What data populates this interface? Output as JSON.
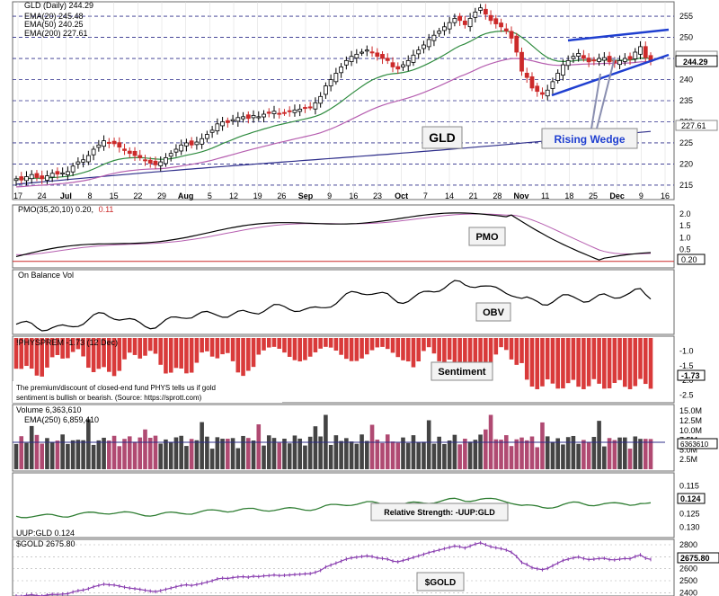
{
  "chart_data": {
    "type": "financial-multi-panel",
    "symbol_header": "GLD (Daily) 244.29",
    "price_panel": {
      "legend": [
        {
          "label": "GLD (Daily) 244.29",
          "color": "#000000"
        },
        {
          "label": "EMA(20) 245.48",
          "color": "#2e8b3e"
        },
        {
          "label": "EMA(50) 240.25",
          "color": "#b65fb0"
        },
        {
          "label": "EMA(200) 227.61",
          "color": "#2d2d8a"
        }
      ],
      "y_ticks": [
        "255",
        "250",
        "245",
        "240",
        "235",
        "230",
        "225",
        "220",
        "215"
      ],
      "y_range": [
        212,
        258
      ],
      "last_price": "244.29",
      "ema200_last": "227.61",
      "annotations": {
        "gld": "GLD",
        "wedge": "Rising Wedge"
      },
      "closes": [
        216.5,
        216.2,
        217,
        217.5,
        216.8,
        216.5,
        217.2,
        217.8,
        217.6,
        217.9,
        218.2,
        219.5,
        220.5,
        221,
        222,
        223.5,
        224.5,
        225.5,
        225,
        224.8,
        224,
        223.2,
        222.5,
        222,
        221.5,
        220.8,
        220.2,
        219.8,
        220.5,
        221.5,
        222.5,
        223.5,
        224.5,
        225,
        224.5,
        225.2,
        226,
        227,
        228,
        229.5,
        230,
        229.8,
        230.5,
        231,
        231.2,
        230.8,
        231.5,
        231.2,
        231.8,
        232,
        232.5,
        232,
        232.2,
        232.5,
        232.8,
        233,
        233.3,
        233.5,
        234.5,
        236,
        238.5,
        240,
        241.5,
        243,
        244.5,
        245.5,
        246,
        246.5,
        247,
        246.5,
        245.5,
        245,
        244.5,
        243,
        242.5,
        243.5,
        244.5,
        245.8,
        247,
        248.2,
        249.5,
        250.5,
        251.5,
        252.5,
        253.5,
        254.5,
        254,
        253,
        254.5,
        256,
        257,
        255.5,
        254,
        253.2,
        252.5,
        251.5,
        249.8,
        246.5,
        242,
        240.5,
        238,
        237.2,
        236.5,
        237.5,
        239.5,
        241.5,
        243.5,
        244.5,
        245.5,
        246.2,
        245,
        244.2,
        244.5,
        245,
        245.2,
        244.2,
        244,
        244.5,
        245,
        244.8,
        246.5,
        247.8,
        245.2,
        244.29
      ]
    },
    "x_axis": {
      "labels": [
        "17",
        "24",
        "Jul",
        "8",
        "15",
        "22",
        "29",
        "Aug",
        "5",
        "12",
        "19",
        "26",
        "Sep",
        "9",
        "16",
        "23",
        "Oct",
        "7",
        "14",
        "21",
        "28",
        "Nov",
        "11",
        "18",
        "25",
        "Dec",
        "9",
        "16"
      ]
    },
    "pmo_panel": {
      "legend": {
        "label": "PMO(35,20,10) 0.20,",
        "value2": "0.11"
      },
      "y_ticks": [
        "2.0",
        "1.5",
        "1.0",
        "0.5",
        "0.0"
      ],
      "last_label": "0.20",
      "annotation": "PMO"
    },
    "obv_panel": {
      "legend": "On Balance Vol",
      "annotation": "OBV"
    },
    "sentiment_panel": {
      "legend": "!PHYSPREM -1.73 (12 Dec)",
      "y_ticks": [
        "-1.0",
        "-1.5",
        "-2.0",
        "-2.5"
      ],
      "last_label": "-1.73",
      "annotation": "Sentiment",
      "note": "The premium/discount of closed-end fund PHYS tells us if gold sentiment is bullish or bearish. (Source: https://sprott.com)"
    },
    "volume_panel": {
      "legend": [
        {
          "label": "Volume 6,363,610",
          "color": "#000000"
        },
        {
          "label": "EMA(250) 6,859,410",
          "color": "#2d2d8a"
        }
      ],
      "y_ticks": [
        "15.0M",
        "12.5M",
        "10.0M",
        "7.5M",
        "5.0M",
        "2.5M"
      ],
      "last_label": "6363610"
    },
    "rs_panel": {
      "legend": "UUP:GLD 0.124",
      "y_ticks": [
        "0.115",
        "0.120",
        "0.125",
        "0.130"
      ],
      "last_label": "0.124",
      "annotation": "Relative Strength: -UUP:GLD"
    },
    "gold_panel": {
      "legend": "$GOLD 2675.80",
      "y_ticks": [
        "2800",
        "2700",
        "2600",
        "2500",
        "2400"
      ],
      "last_label": "2675.80",
      "annotation": "$GOLD"
    },
    "colors": {
      "up": "#000000",
      "down": "#cc2a2a",
      "ema20": "#2e8b3e",
      "ema50": "#b65fb0",
      "ema200": "#2d2d8a",
      "annotation_blue": "#1f3fd0",
      "hist_red": "#d93a3a",
      "vol_pink": "#b04a72",
      "label_bg": "#f3f3f3"
    }
  }
}
